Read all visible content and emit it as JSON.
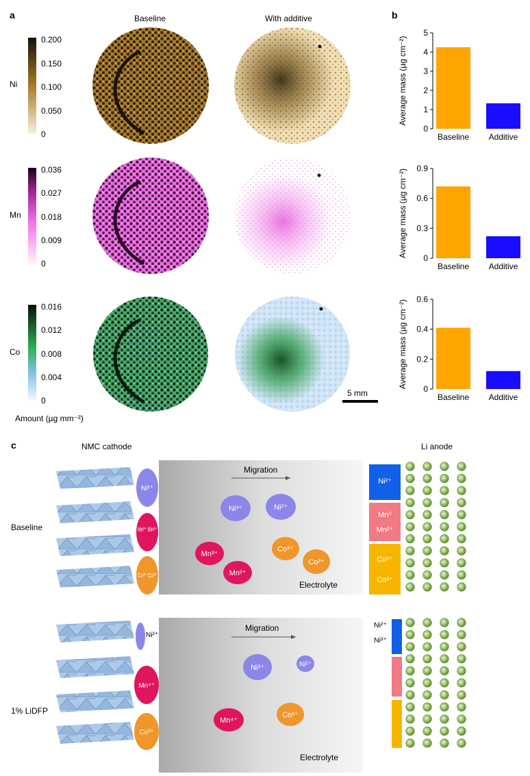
{
  "panel_a": {
    "letter": "a",
    "col_baseline": "Baseline",
    "col_additive": "With additive",
    "rows": [
      {
        "element": "Ni",
        "ticks": [
          "0.200",
          "0.150",
          "0.100",
          "0.050",
          "0"
        ],
        "color_dark": "#1a1208",
        "color_mid": "#8a6419",
        "color_light": "#f1e6cf"
      },
      {
        "element": "Mn",
        "ticks": [
          "0.036",
          "0.027",
          "0.018",
          "0.009",
          "0"
        ],
        "color_dark": "#1a0819",
        "color_mid": "#e05ad8",
        "color_light": "#fde9fb"
      },
      {
        "element": "Co",
        "ticks": [
          "0.016",
          "0.012",
          "0.008",
          "0.004",
          "0"
        ],
        "color_dark": "#0b140d",
        "color_mid": "#2f9d4a",
        "color_light": "#d9ecfb"
      }
    ],
    "amount_label": "Amount (µg mm⁻²)",
    "scale_label": "5 mm"
  },
  "panel_b": {
    "letter": "b",
    "ylabel": "Average mass (µg cm⁻²)",
    "colors": {
      "baseline": "#FFA500",
      "additive": "#1a0dff"
    }
  },
  "chart_data": [
    {
      "type": "bar",
      "element": "Ni",
      "categories": [
        "Baseline",
        "Additive"
      ],
      "values": [
        4.25,
        1.33
      ],
      "ylim": [
        0,
        5
      ],
      "yticks": [
        "0",
        "1",
        "2",
        "3",
        "4",
        "5"
      ],
      "ylabel": "Average mass (µg cm⁻²)"
    },
    {
      "type": "bar",
      "element": "Mn",
      "categories": [
        "Baseline",
        "Additive"
      ],
      "values": [
        0.72,
        0.22
      ],
      "ylim": [
        0,
        0.9
      ],
      "yticks": [
        "0",
        "0.3",
        "0.6",
        "0.9"
      ],
      "ylabel": "Average mass (µg cm⁻²)"
    },
    {
      "type": "bar",
      "element": "Co",
      "categories": [
        "Baseline",
        "Additive"
      ],
      "values": [
        0.41,
        0.12
      ],
      "ylim": [
        0,
        0.6
      ],
      "yticks": [
        "0",
        "0.2",
        "0.4",
        "0.6"
      ],
      "ylabel": "Average mass (µg cm⁻²)"
    }
  ],
  "panel_c": {
    "letter": "c",
    "cathode_label": "NMC cathode",
    "anode_label": "Li anode",
    "migration_label": "Migration",
    "electrolyte_label": "Electrolyte",
    "baseline": {
      "label": "Baseline",
      "cathode_ions": [
        "Ni²⁺",
        "Mn³⁺ Mn²⁺",
        "Co³⁺ Co²⁺"
      ],
      "electrolyte_ions": [
        "Ni³⁺",
        "Ni²⁺",
        "Mn³⁺",
        "Mn²⁺",
        "Co³⁺",
        "Co²⁺"
      ],
      "anode_deposits": [
        "Ni²⁺",
        "Mn⁰",
        "Mn²⁺",
        "Co³⁺",
        "Co³⁺"
      ]
    },
    "additive": {
      "label": "1% LiDFP",
      "cathode_ions": [
        "Ni²⁺",
        "Mn⁴⁺",
        "Co³⁺"
      ],
      "electrolyte_ions": [
        "Ni³⁺",
        "Ni²⁺",
        "Mn⁴⁺",
        "Co³⁺"
      ],
      "anode_deposits": [
        "Ni²⁺",
        "Ni³⁺"
      ]
    },
    "ion_colors": {
      "ni": "#8b86e8",
      "mn": "#e0155f",
      "co": "#f0962b",
      "ni_box": "#1160e8",
      "mn_box": "#f27a84",
      "co_box": "#f7b500"
    }
  }
}
